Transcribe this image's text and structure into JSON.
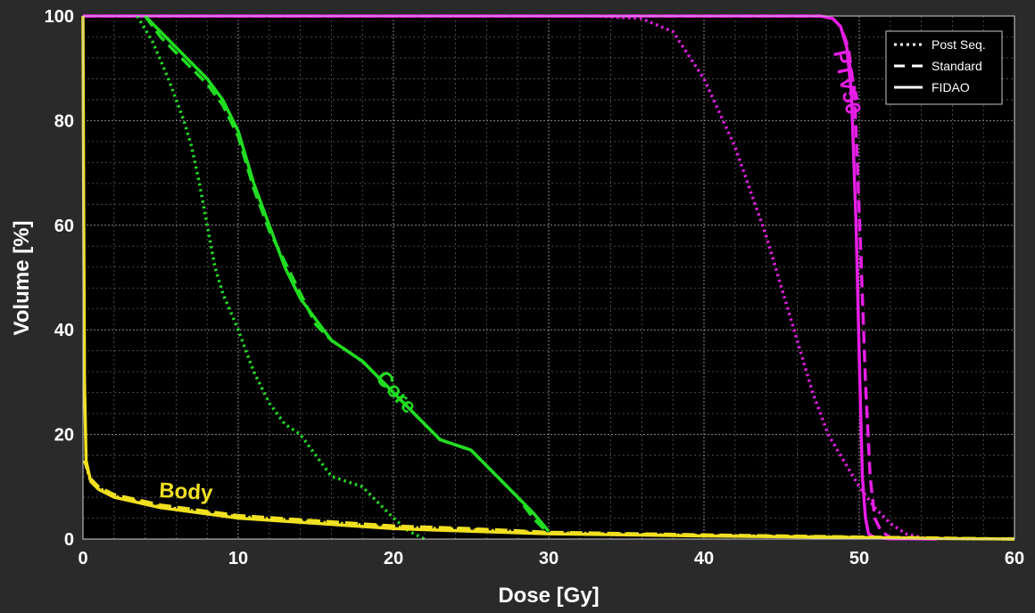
{
  "chart_data": {
    "type": "line",
    "title": "",
    "xlabel": "Dose [Gy]",
    "ylabel": "Volume [%]",
    "xlim": [
      0,
      60
    ],
    "ylim": [
      0,
      100
    ],
    "xticks": [
      0,
      10,
      20,
      30,
      40,
      50,
      60
    ],
    "yticks": [
      0,
      20,
      40,
      60,
      80,
      100
    ],
    "grid": true,
    "minor_grid": true,
    "legend_placement": "top-right",
    "legend": [
      {
        "label": "Post Seq.",
        "style": "dotted"
      },
      {
        "label": "Standard",
        "style": "dashed"
      },
      {
        "label": "FIDAO",
        "style": "solid"
      }
    ],
    "annotations": [
      {
        "text": "PTV50",
        "color": "#e61ee6"
      },
      {
        "text": "Core",
        "color": "#22dd22"
      },
      {
        "text": "Body",
        "color": "#f0e020"
      }
    ],
    "colors": {
      "background": "#2a2a2a",
      "plot_background": "#000000",
      "ptv50": "#e61ee6",
      "core": "#22dd22",
      "body": "#f0e020",
      "axis_text": "#ffffff"
    },
    "series": [
      {
        "structure": "PTV50",
        "method": "FIDAO",
        "style": "solid",
        "color": "#e61ee6",
        "x": [
          0,
          47.5,
          48.3,
          48.8,
          49.2,
          49.5,
          49.8,
          50.0,
          50.2,
          50.4,
          50.6,
          51.0,
          52.0,
          55.0
        ],
        "y": [
          100,
          100,
          99.5,
          98,
          94,
          85,
          60,
          35,
          12,
          4,
          1,
          0.3,
          0.05,
          0
        ]
      },
      {
        "structure": "PTV50",
        "method": "Standard",
        "style": "dashed",
        "color": "#e61ee6",
        "x": [
          0,
          47.5,
          48.3,
          48.8,
          49.3,
          49.7,
          50.1,
          50.4,
          50.7,
          51.0,
          51.4,
          52.0,
          55.0
        ],
        "y": [
          100,
          100,
          99.5,
          98,
          94,
          85,
          55,
          30,
          12,
          4,
          1.5,
          0.3,
          0
        ]
      },
      {
        "structure": "PTV50",
        "method": "Post Seq.",
        "style": "dotted",
        "color": "#e61ee6",
        "x": [
          0,
          33,
          36,
          38,
          40,
          42,
          44,
          45,
          46,
          47,
          48,
          49,
          50,
          51,
          52,
          53,
          54,
          55
        ],
        "y": [
          100,
          100,
          99.5,
          97,
          88,
          75,
          58,
          48,
          38,
          28,
          20,
          15,
          10,
          6,
          3,
          1,
          0.3,
          0
        ]
      },
      {
        "structure": "Core",
        "method": "FIDAO",
        "style": "solid",
        "color": "#22dd22",
        "x": [
          4,
          5,
          6,
          7,
          8,
          9,
          10,
          11,
          12,
          13,
          14,
          15,
          16,
          17,
          18,
          19,
          20,
          21,
          22,
          23,
          24,
          25,
          26,
          27,
          28,
          29,
          30
        ],
        "y": [
          100,
          97,
          94,
          91,
          88,
          84,
          78,
          68,
          60,
          52,
          46,
          42,
          38,
          36,
          34,
          31,
          28,
          25,
          22,
          19,
          18,
          17,
          14,
          11,
          8,
          5,
          1.5
        ]
      },
      {
        "structure": "Core",
        "method": "Standard",
        "style": "dashed",
        "color": "#22dd22",
        "x": [
          4,
          5,
          6,
          7,
          8,
          9,
          10,
          11,
          12,
          13,
          14,
          15,
          16,
          17,
          18,
          19,
          20,
          21,
          22,
          23,
          24,
          25,
          26,
          27,
          28,
          29,
          30
        ],
        "y": [
          100,
          96,
          93,
          90,
          87,
          83,
          77,
          67,
          59,
          53,
          47,
          41,
          38,
          36,
          34,
          31,
          28,
          25,
          22,
          19,
          18,
          17,
          14,
          11,
          8,
          4,
          1
        ]
      },
      {
        "structure": "Core",
        "method": "Post Seq.",
        "style": "dotted",
        "color": "#22dd22",
        "x": [
          3.5,
          4.5,
          5.5,
          6.5,
          7,
          7.5,
          8,
          8.5,
          9,
          10,
          11,
          12,
          13,
          14,
          15,
          16,
          17,
          18,
          19,
          20,
          21,
          22
        ],
        "y": [
          100,
          95,
          88,
          80,
          75,
          68,
          60,
          52,
          47,
          40,
          32,
          26,
          22,
          20,
          16,
          12,
          11,
          10,
          7,
          4,
          1.5,
          0
        ]
      },
      {
        "structure": "Body",
        "method": "FIDAO",
        "style": "solid",
        "color": "#f0e020",
        "x": [
          0,
          0.05,
          0.1,
          0.2,
          0.5,
          1,
          2,
          5,
          10,
          15,
          20,
          25,
          30,
          40,
          50,
          55,
          60
        ],
        "y": [
          100,
          60,
          30,
          15,
          11,
          9.5,
          8,
          6,
          4,
          3,
          2,
          1.5,
          1,
          0.6,
          0.3,
          0.1,
          0
        ]
      },
      {
        "structure": "Body",
        "method": "Standard",
        "style": "dashed",
        "color": "#f0e020",
        "x": [
          0.1,
          0.5,
          1,
          2,
          5,
          10,
          15,
          20,
          25,
          30,
          40,
          50,
          55,
          60
        ],
        "y": [
          15,
          11.5,
          10,
          8.5,
          6.5,
          4.5,
          3.5,
          2.5,
          2,
          1.3,
          0.8,
          0.4,
          0.2,
          0
        ]
      },
      {
        "structure": "Body",
        "method": "Post Seq.",
        "style": "dotted",
        "color": "#f0e020",
        "x": [
          0.1,
          0.5,
          1,
          2,
          5,
          10,
          15,
          20,
          25,
          30,
          40,
          50,
          55,
          60
        ],
        "y": [
          15,
          11,
          9.8,
          8.2,
          6.2,
          4.3,
          3.3,
          2.3,
          1.8,
          1.2,
          0.7,
          0.35,
          0.15,
          0
        ]
      }
    ]
  }
}
